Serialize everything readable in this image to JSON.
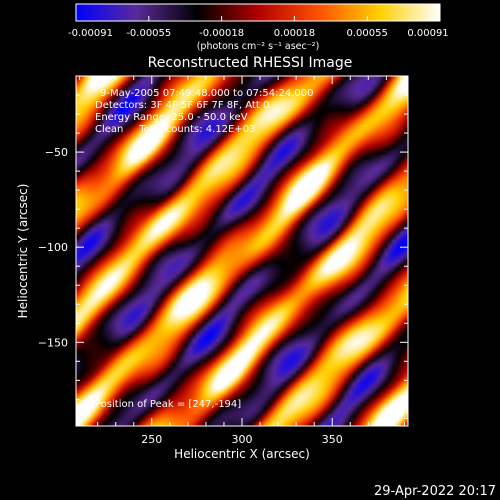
{
  "chart_data": {
    "type": "heatmap",
    "title": "Reconstructed RHESSI Image",
    "xlabel": "Heliocentric X (arcsec)",
    "ylabel": "Heliocentric Y (arcsec)",
    "xlim": [
      208,
      392
    ],
    "ylim": [
      -194,
      -10
    ],
    "xticks": [
      250,
      300,
      350
    ],
    "yticks": [
      -50,
      -100,
      -150
    ],
    "colorbar": {
      "range": [
        -0.00091,
        0.00091
      ],
      "ticks": [
        "-0.00091",
        "-0.00055",
        "-0.00018",
        "0.00018",
        "0.00055",
        "0.00091"
      ],
      "units": "(photons cm⁻² s⁻¹ asec⁻²)",
      "colormap": [
        "#0000ff",
        "#5a2a9a",
        "#000000",
        "#b00000",
        "#ff5000",
        "#ffd000",
        "#ffffff"
      ]
    },
    "annotations": [
      "9-May-2005 07:49:48.000 to 07:54:24.000",
      "Detectors: 3F 4F 5F 6F 7F 8F, Att 0",
      "Energy Range: 25.0 - 50.0 keV",
      "Clean     Total counts: 4.12E+03"
    ],
    "peak_label": "Position of Peak = [247,-194]",
    "peak": [
      247,
      -194
    ]
  },
  "timestamp": "29-Apr-2022 20:17"
}
